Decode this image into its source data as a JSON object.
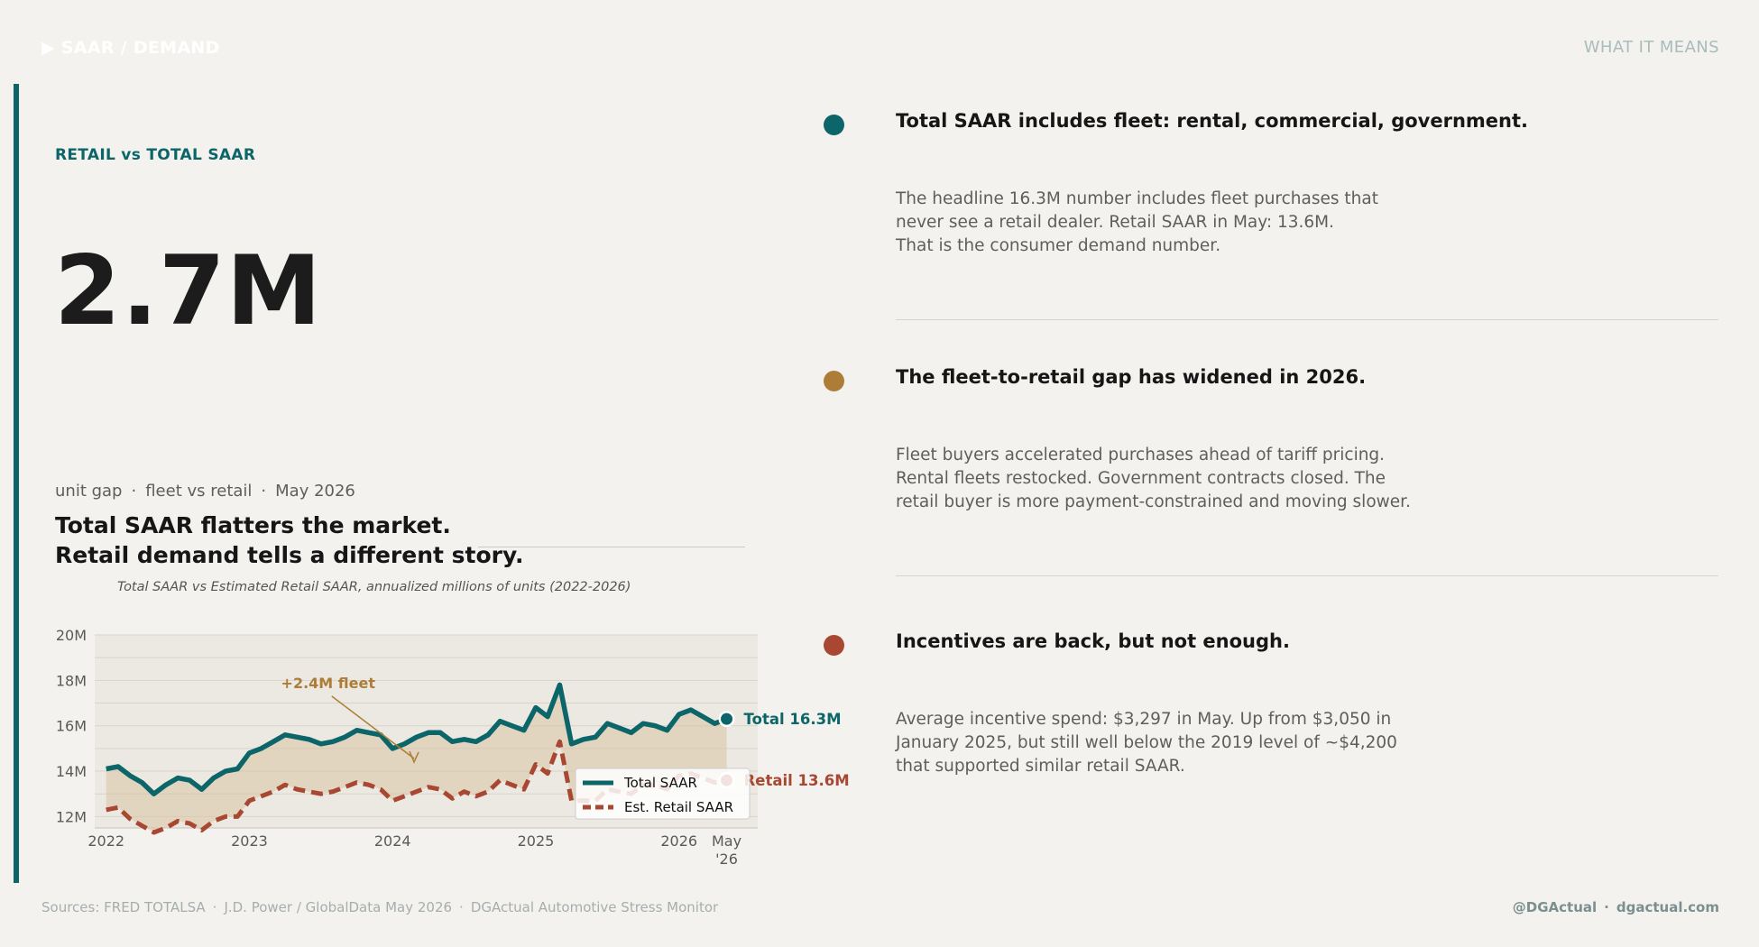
{
  "header": {
    "section_label": "▶  SAAR / DEMAND",
    "right_label": "WHAT IT MEANS"
  },
  "hero": {
    "kicker": "RETAIL vs TOTAL SAAR",
    "big_number": "2.7M",
    "subline": [
      "unit gap",
      "fleet vs retail",
      "May 2026"
    ],
    "subline_sep": "·",
    "headline_line1": "Total SAAR flatters the market.",
    "headline_line2": "Retail demand tells a different story."
  },
  "chart_data": {
    "type": "line",
    "title": "Total SAAR vs Estimated Retail SAAR, annualized millions of units (2022-2026)",
    "xlabel": "",
    "ylabel": "",
    "x": [
      2022.0,
      2022.083,
      2022.167,
      2022.25,
      2022.333,
      2022.417,
      2022.5,
      2022.583,
      2022.667,
      2022.75,
      2022.833,
      2022.917,
      2023.0,
      2023.083,
      2023.167,
      2023.25,
      2023.333,
      2023.417,
      2023.5,
      2023.583,
      2023.667,
      2023.75,
      2023.833,
      2023.917,
      2024.0,
      2024.083,
      2024.167,
      2024.25,
      2024.333,
      2024.417,
      2024.5,
      2024.583,
      2024.667,
      2024.75,
      2024.833,
      2024.917,
      2025.0,
      2025.083,
      2025.167,
      2025.25,
      2025.333,
      2025.417,
      2025.5,
      2025.583,
      2025.667,
      2025.75,
      2025.833,
      2025.917,
      2026.0,
      2026.083,
      2026.167,
      2026.25,
      2026.333
    ],
    "series": [
      {
        "name": "Total SAAR",
        "values": [
          14.1,
          14.2,
          13.8,
          13.5,
          13.0,
          13.4,
          13.7,
          13.6,
          13.2,
          13.7,
          14.0,
          14.1,
          14.8,
          15.0,
          15.3,
          15.6,
          15.5,
          15.4,
          15.2,
          15.3,
          15.5,
          15.8,
          15.7,
          15.6,
          15.0,
          15.2,
          15.5,
          15.7,
          15.7,
          15.3,
          15.4,
          15.3,
          15.6,
          16.2,
          16.0,
          15.8,
          16.8,
          16.4,
          17.8,
          15.2,
          15.4,
          15.5,
          16.1,
          15.9,
          15.7,
          16.1,
          16.0,
          15.8,
          16.5,
          16.7,
          16.4,
          16.1,
          16.3
        ],
        "color": "#0c6568",
        "style": "solid"
      },
      {
        "name": "Est. Retail SAAR",
        "values": [
          12.3,
          12.4,
          11.9,
          11.6,
          11.3,
          11.5,
          11.8,
          11.7,
          11.4,
          11.8,
          12.0,
          12.0,
          12.7,
          12.9,
          13.1,
          13.4,
          13.2,
          13.1,
          13.0,
          13.1,
          13.3,
          13.5,
          13.4,
          13.2,
          12.7,
          12.9,
          13.1,
          13.3,
          13.2,
          12.8,
          13.1,
          12.9,
          13.1,
          13.6,
          13.4,
          13.2,
          14.3,
          13.9,
          15.3,
          12.7,
          12.7,
          12.7,
          13.2,
          13.1,
          13.0,
          13.4,
          13.4,
          13.2,
          13.8,
          13.9,
          13.7,
          13.5,
          13.6
        ],
        "color": "#a84832",
        "style": "dashed"
      }
    ],
    "ylim": [
      11.5,
      20
    ],
    "xlim": [
      2021.92,
      2026.55
    ],
    "yticks": [
      12,
      14,
      16,
      18,
      20
    ],
    "ytick_labels": [
      "12M",
      "14M",
      "16M",
      "18M",
      "20M"
    ],
    "xticks": [
      2022,
      2023,
      2024,
      2025,
      2026,
      2026.333
    ],
    "xtick_labels": [
      "2022",
      "2023",
      "2024",
      "2025",
      "2026",
      "May\n'26"
    ],
    "grid": true,
    "legend": {
      "placement": "lower-right",
      "entries": [
        "Total SAAR",
        "Est. Retail SAAR"
      ]
    },
    "annotations": [
      {
        "text": "+2.4M fleet",
        "arrow_to": {
          "x": 2024.15,
          "y": 14.4
        },
        "text_at": {
          "x": 2023.55,
          "y": 17.7
        },
        "color": "#ad7d37"
      },
      {
        "text": "Total 16.3M",
        "point": {
          "x": 2026.333,
          "y": 16.3
        },
        "color": "#0c6568"
      },
      {
        "text": "Retail 13.6M",
        "point": {
          "x": 2026.333,
          "y": 13.6
        },
        "color": "#a84832"
      }
    ],
    "fill_between_color": "#d9c4a4"
  },
  "points": [
    {
      "color": "#0c6568",
      "title": "Total SAAR includes fleet: rental, commercial, government.",
      "body_lines": [
        "The headline 16.3M number includes fleet purchases that",
        "never see a retail dealer. Retail SAAR in May: 13.6M.",
        "That is the consumer demand number."
      ]
    },
    {
      "color": "#ad7d37",
      "title": "The fleet-to-retail gap has widened in 2026.",
      "body_lines": [
        "Fleet buyers accelerated purchases ahead of tariff pricing.",
        "Rental fleets restocked. Government contracts closed. The",
        "retail buyer is more payment-constrained and moving slower."
      ]
    },
    {
      "color": "#a84832",
      "title": "Incentives are back, but not enough.",
      "body_lines": [
        "Average incentive spend: $3,297 in May. Up from $3,050 in",
        "January 2025, but still well below the 2019 level of ~$4,200",
        "that supported similar retail SAAR."
      ]
    }
  ],
  "footer": {
    "sources": [
      "Sources: FRED TOTALSA",
      "J.D. Power / GlobalData May 2026",
      "DGActual Automotive Stress Monitor"
    ],
    "sep": "·",
    "handle": "@DGActual",
    "site": "dgactual.com"
  }
}
